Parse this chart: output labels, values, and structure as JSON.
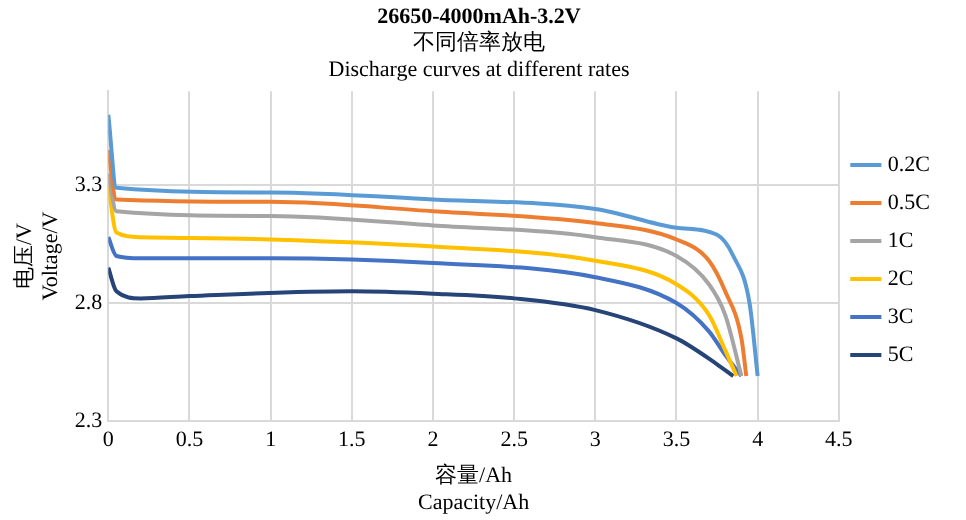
{
  "chart_data": {
    "type": "line",
    "title": "26650-4000mAh-3.2V",
    "subtitle": "不同倍率放电\nDischarge curves at different rates",
    "xlabel": "容量/Ah\nCapacity/Ah",
    "ylabel": "电压/V\nVoltage/V",
    "xlim": [
      0,
      4.5
    ],
    "xticks": [
      0,
      0.5,
      1,
      1.5,
      2,
      2.5,
      3,
      3.5,
      4,
      4.5
    ],
    "ylim": [
      2.3,
      3.7
    ],
    "yticks": [
      2.3,
      2.8,
      3.3
    ],
    "grid": true,
    "legend": "right",
    "marker": "none",
    "line_style": "solid",
    "series": [
      {
        "name": "0.2C",
        "color": "#5b9bd5",
        "x": [
          0,
          0.05,
          1,
          2,
          3,
          3.5,
          3.75,
          3.85,
          3.95,
          4.0
        ],
        "values": [
          3.6,
          3.29,
          3.27,
          3.24,
          3.2,
          3.12,
          3.09,
          3.0,
          2.8,
          2.49
        ]
      },
      {
        "name": "0.5C",
        "color": "#ed7d31",
        "x": [
          0,
          0.05,
          1,
          2,
          3,
          3.5,
          3.7,
          3.8,
          3.9,
          3.93
        ],
        "values": [
          3.45,
          3.24,
          3.23,
          3.19,
          3.14,
          3.07,
          2.98,
          2.85,
          2.65,
          2.49
        ]
      },
      {
        "name": "1C",
        "color": "#a5a5a5",
        "x": [
          0,
          0.05,
          1,
          2,
          3,
          3.5,
          3.7,
          3.8,
          3.9
        ],
        "values": [
          3.35,
          3.19,
          3.17,
          3.13,
          3.08,
          3.0,
          2.88,
          2.75,
          2.49
        ]
      },
      {
        "name": "2C",
        "color": "#ffc000",
        "x": [
          0,
          0.05,
          0.2,
          1,
          2,
          3,
          3.5,
          3.7,
          3.8,
          3.87
        ],
        "values": [
          3.3,
          3.1,
          3.08,
          3.07,
          3.04,
          2.98,
          2.88,
          2.75,
          2.6,
          2.49
        ]
      },
      {
        "name": "3C",
        "color": "#4472c4",
        "x": [
          0,
          0.05,
          0.2,
          1,
          2,
          3,
          3.5,
          3.7,
          3.8,
          3.9
        ],
        "values": [
          3.08,
          3.0,
          2.99,
          2.99,
          2.97,
          2.91,
          2.8,
          2.68,
          2.58,
          2.49
        ]
      },
      {
        "name": "5C",
        "color": "#264478",
        "x": [
          0,
          0.05,
          0.2,
          0.5,
          1.5,
          2,
          2.5,
          3,
          3.5,
          3.75,
          3.85
        ],
        "values": [
          2.95,
          2.85,
          2.82,
          2.83,
          2.85,
          2.84,
          2.82,
          2.77,
          2.65,
          2.54,
          2.49
        ]
      }
    ]
  }
}
